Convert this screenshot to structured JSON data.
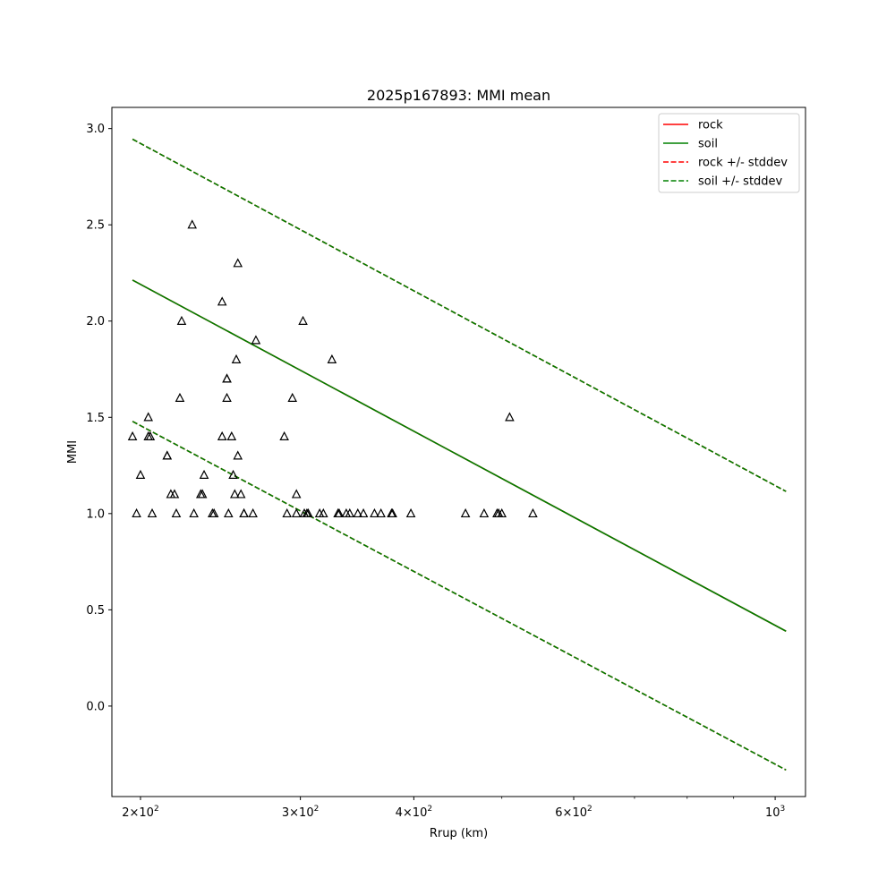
{
  "chart_data": {
    "type": "scatter",
    "title": "2025p167893: MMI mean",
    "xlabel": "Rrup (km)",
    "ylabel": "MMI",
    "xscale": "log",
    "xlim": [
      186,
      1080
    ],
    "ylim": [
      -0.47,
      3.11
    ],
    "grid": false,
    "legend_position": "top-right",
    "xticks": [
      {
        "value": 200,
        "base": "2",
        "exp": "2"
      },
      {
        "value": 300,
        "base": "3",
        "exp": "2"
      },
      {
        "value": 400,
        "base": "4",
        "exp": "2"
      },
      {
        "value": 600,
        "base": "6",
        "exp": "2"
      },
      {
        "value": 1000,
        "base": "10",
        "exp": "3"
      }
    ],
    "yticks": [
      "0.0",
      "0.5",
      "1.0",
      "1.5",
      "2.0",
      "2.5",
      "3.0"
    ],
    "series": [
      {
        "name": "rock",
        "kind": "line",
        "dash": false,
        "color": "#ff0000",
        "points": [
          [
            196,
            2.213
          ],
          [
            1028,
            0.389
          ]
        ]
      },
      {
        "name": "soil",
        "kind": "line",
        "dash": false,
        "color": "#008000",
        "points": [
          [
            196,
            2.213
          ],
          [
            1028,
            0.389
          ]
        ]
      },
      {
        "name": "rock +/- stddev",
        "kind": "band",
        "dash": true,
        "color": "#ff0000",
        "upper": [
          [
            196,
            2.945
          ],
          [
            1028,
            1.115
          ]
        ],
        "lower": [
          [
            196,
            1.479
          ],
          [
            1028,
            -0.332
          ]
        ]
      },
      {
        "name": "soil +/- stddev",
        "kind": "band",
        "dash": true,
        "color": "#008000",
        "upper": [
          [
            196,
            2.945
          ],
          [
            1028,
            1.115
          ]
        ],
        "lower": [
          [
            196,
            1.479
          ],
          [
            1028,
            -0.332
          ]
        ]
      }
    ],
    "observations": {
      "marker": "triangle",
      "color": "#000000",
      "points": [
        [
          196,
          1.4
        ],
        [
          198,
          1.0
        ],
        [
          200,
          1.2
        ],
        [
          204,
          1.5
        ],
        [
          204,
          1.4
        ],
        [
          205,
          1.4
        ],
        [
          206,
          1.0
        ],
        [
          214,
          1.3
        ],
        [
          214,
          1.3
        ],
        [
          216,
          1.1
        ],
        [
          218,
          1.1
        ],
        [
          219,
          1.0
        ],
        [
          221,
          1.6
        ],
        [
          222,
          2.0
        ],
        [
          228,
          2.5
        ],
        [
          229,
          1.0
        ],
        [
          233,
          1.1
        ],
        [
          234,
          1.1
        ],
        [
          235,
          1.2
        ],
        [
          240,
          1.0
        ],
        [
          241,
          1.0
        ],
        [
          246,
          2.1
        ],
        [
          246,
          1.4
        ],
        [
          249,
          1.7
        ],
        [
          249,
          1.7
        ],
        [
          249,
          1.6
        ],
        [
          250,
          1.0
        ],
        [
          252,
          1.4
        ],
        [
          253,
          1.2
        ],
        [
          254,
          1.1
        ],
        [
          255,
          1.8
        ],
        [
          256,
          2.3
        ],
        [
          256,
          1.3
        ],
        [
          258,
          1.1
        ],
        [
          260,
          1.0
        ],
        [
          260,
          1.0
        ],
        [
          266,
          1.0
        ],
        [
          268,
          1.9
        ],
        [
          288,
          1.4
        ],
        [
          290,
          1.0
        ],
        [
          294,
          1.6
        ],
        [
          297,
          1.1
        ],
        [
          297,
          1.0
        ],
        [
          302,
          2.0
        ],
        [
          303,
          1.0
        ],
        [
          305,
          1.0
        ],
        [
          306,
          1.0
        ],
        [
          315,
          1.0
        ],
        [
          318,
          1.0
        ],
        [
          325,
          1.8
        ],
        [
          330,
          1.0
        ],
        [
          331,
          1.0
        ],
        [
          337,
          1.0
        ],
        [
          340,
          1.0
        ],
        [
          347,
          1.0
        ],
        [
          352,
          1.0
        ],
        [
          362,
          1.0
        ],
        [
          368,
          1.0
        ],
        [
          378,
          1.0
        ],
        [
          379,
          1.0
        ],
        [
          397,
          1.0
        ],
        [
          456,
          1.0
        ],
        [
          478,
          1.0
        ],
        [
          494,
          1.0
        ],
        [
          496,
          1.0
        ],
        [
          500,
          1.0
        ],
        [
          510,
          1.5
        ],
        [
          541,
          1.0
        ]
      ]
    }
  }
}
